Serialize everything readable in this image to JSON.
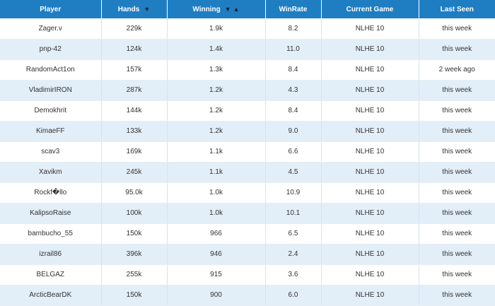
{
  "header": {
    "player": "Player",
    "hands": "Hands",
    "hands_sort_icon": "▼",
    "winning": "Winning",
    "winning_sort_desc_icon": "▼",
    "winning_sort_asc_icon": "▲",
    "winrate": "WinRate",
    "current_game": "Current Game",
    "last_seen": "Last Seen"
  },
  "rows": [
    {
      "player": "Zager.v",
      "hands": "229k",
      "winning": "1.9k",
      "winrate": "8.2",
      "game": "NLHE 10",
      "seen": "this week"
    },
    {
      "player": "pnp-42",
      "hands": "124k",
      "winning": "1.4k",
      "winrate": "11.0",
      "game": "NLHE 10",
      "seen": "this week"
    },
    {
      "player": "RandomAct1on",
      "hands": "157k",
      "winning": "1.3k",
      "winrate": "8.4",
      "game": "NLHE 10",
      "seen": "2 week ago"
    },
    {
      "player": "VladimirIRON",
      "hands": "287k",
      "winning": "1.2k",
      "winrate": "4.3",
      "game": "NLHE 10",
      "seen": "this week"
    },
    {
      "player": "Demokhrit",
      "hands": "144k",
      "winning": "1.2k",
      "winrate": "8.4",
      "game": "NLHE 10",
      "seen": "this week"
    },
    {
      "player": "KimaeFF",
      "hands": "133k",
      "winning": "1.2k",
      "winrate": "9.0",
      "game": "NLHE 10",
      "seen": "this week"
    },
    {
      "player": "scav3",
      "hands": "169k",
      "winning": "1.1k",
      "winrate": "6.6",
      "game": "NLHE 10",
      "seen": "this week"
    },
    {
      "player": "Xavikm",
      "hands": "245k",
      "winning": "1.1k",
      "winrate": "4.5",
      "game": "NLHE 10",
      "seen": "this week"
    },
    {
      "player": "Rockf�llo",
      "hands": "95.0k",
      "winning": "1.0k",
      "winrate": "10.9",
      "game": "NLHE 10",
      "seen": "this week"
    },
    {
      "player": "KalipsoRaise",
      "hands": "100k",
      "winning": "1.0k",
      "winrate": "10.1",
      "game": "NLHE 10",
      "seen": "this week"
    },
    {
      "player": "bambucho_55",
      "hands": "150k",
      "winning": "966",
      "winrate": "6.5",
      "game": "NLHE 10",
      "seen": "this week"
    },
    {
      "player": "izrail86",
      "hands": "396k",
      "winning": "946",
      "winrate": "2.4",
      "game": "NLHE 10",
      "seen": "this week"
    },
    {
      "player": "BELGAZ",
      "hands": "255k",
      "winning": "915",
      "winrate": "3.6",
      "game": "NLHE 10",
      "seen": "this week"
    },
    {
      "player": "ArcticBearDK",
      "hands": "150k",
      "winning": "900",
      "winrate": "6.0",
      "game": "NLHE 10",
      "seen": "this week"
    }
  ]
}
